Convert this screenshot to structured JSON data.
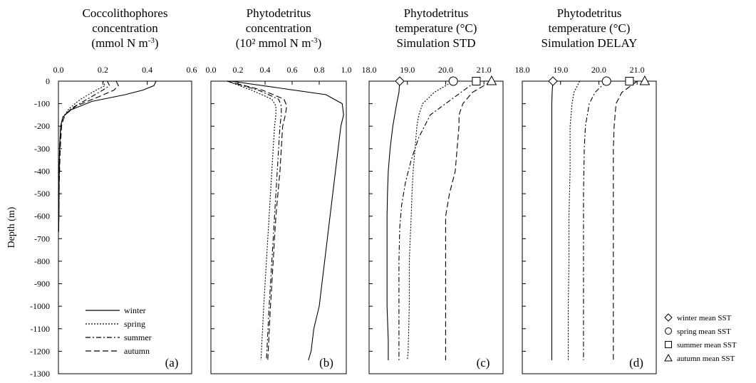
{
  "chart_data": {
    "type": "line",
    "ylabel": "Depth (m)",
    "ylim": [
      -1300,
      0
    ],
    "yticks": [
      "0",
      "-100",
      "-200",
      "-300",
      "-400",
      "-500",
      "-600",
      "-700",
      "-800",
      "-900",
      "-1000",
      "-1100",
      "-1200",
      "-1300"
    ],
    "legend_lines": [
      "winter",
      "spring",
      "summer",
      "autumn"
    ],
    "legend_markers": [
      {
        "label": "winter mean SST",
        "marker": "diamond"
      },
      {
        "label": "spring mean SST",
        "marker": "circle"
      },
      {
        "label": "summer mean SST",
        "marker": "square"
      },
      {
        "label": "autumn mean SST",
        "marker": "triangle"
      }
    ],
    "styles": {
      "winter": "solid",
      "spring": "dotted",
      "summer": "dash-dot",
      "autumn": "dashed"
    },
    "panels": [
      {
        "letter": "(a)",
        "title": [
          "Coccolithophores",
          "concentration",
          "(mmol N m-3)"
        ],
        "xlim": [
          0,
          0.6
        ],
        "xticks": [
          "0.0",
          "0.2",
          "0.4",
          "0.6"
        ],
        "series": [
          {
            "name": "winter",
            "x": [
              0.44,
              0.43,
              0.38,
              0.3,
              0.15,
              0.05,
              0.02,
              0.01,
              0.005,
              0.003,
              0.002,
              0.001
            ],
            "y": [
              0,
              -20,
              -40,
              -60,
              -90,
              -130,
              -160,
              -200,
              -300,
              -450,
              -600,
              -670
            ]
          },
          {
            "name": "spring",
            "x": [
              0.2,
              0.21,
              0.17,
              0.1,
              0.05,
              0.02,
              0.01,
              0.005,
              0.003,
              0.002,
              0.001
            ],
            "y": [
              0,
              -20,
              -40,
              -80,
              -120,
              -160,
              -200,
              -300,
              -450,
              -600,
              -670
            ]
          },
          {
            "name": "summer",
            "x": [
              0.22,
              0.23,
              0.2,
              0.13,
              0.06,
              0.02,
              0.01,
              0.005,
              0.003,
              0.002,
              0.001
            ],
            "y": [
              0,
              -20,
              -40,
              -80,
              -120,
              -160,
              -200,
              -300,
              -450,
              -600,
              -670
            ]
          },
          {
            "name": "autumn",
            "x": [
              0.26,
              0.27,
              0.25,
              0.18,
              0.08,
              0.03,
              0.015,
              0.008,
              0.004,
              0.002,
              0.001
            ],
            "y": [
              0,
              -20,
              -40,
              -70,
              -110,
              -150,
              -190,
              -300,
              -450,
              -600,
              -670
            ]
          }
        ]
      },
      {
        "letter": "(b)",
        "title": [
          "Phytodetritus",
          "concentration",
          "(10² mmol N m-3)"
        ],
        "xlim": [
          0,
          1
        ],
        "xticks": [
          "0.0",
          "0.2",
          "0.4",
          "0.6",
          "0.8",
          "1.0"
        ],
        "series": [
          {
            "name": "winter",
            "x": [
              0.15,
              0.5,
              0.85,
              0.97,
              0.98,
              0.96,
              0.92,
              0.88,
              0.84,
              0.8,
              0.76,
              0.74,
              0.72
            ],
            "y": [
              0,
              -30,
              -60,
              -100,
              -150,
              -200,
              -400,
              -600,
              -800,
              -1000,
              -1100,
              -1200,
              -1240
            ]
          },
          {
            "name": "spring",
            "x": [
              0.12,
              0.3,
              0.45,
              0.48,
              0.48,
              0.47,
              0.45,
              0.43,
              0.41,
              0.39,
              0.37
            ],
            "y": [
              0,
              -40,
              -80,
              -110,
              -150,
              -200,
              -400,
              -600,
              -800,
              -1000,
              -1240
            ]
          },
          {
            "name": "summer",
            "x": [
              0.12,
              0.35,
              0.5,
              0.52,
              0.52,
              0.51,
              0.49,
              0.47,
              0.45,
              0.43,
              0.41
            ],
            "y": [
              0,
              -40,
              -80,
              -110,
              -150,
              -200,
              -400,
              -600,
              -800,
              -1000,
              -1240
            ]
          },
          {
            "name": "autumn",
            "x": [
              0.12,
              0.38,
              0.54,
              0.56,
              0.55,
              0.53,
              0.51,
              0.48,
              0.46,
              0.44,
              0.42
            ],
            "y": [
              0,
              -40,
              -80,
              -110,
              -150,
              -200,
              -400,
              -600,
              -800,
              -1000,
              -1240
            ]
          }
        ]
      },
      {
        "letter": "(c)",
        "title": [
          "Phytodetritus",
          "temperature (°C)",
          "Simulation STD"
        ],
        "xlim": [
          18,
          21.5
        ],
        "xticks": [
          "18.0",
          "19.0",
          "20.0",
          "21.0"
        ],
        "sst": {
          "winter": 18.8,
          "spring": 20.2,
          "summer": 20.8,
          "autumn": 21.2
        },
        "series": [
          {
            "name": "winter",
            "x": [
              18.8,
              18.78,
              18.72,
              18.62,
              18.55,
              18.5,
              18.48,
              18.47,
              18.47,
              18.47,
              18.5,
              18.5,
              18.5
            ],
            "y": [
              0,
              -50,
              -100,
              -200,
              -300,
              -400,
              -500,
              -600,
              -800,
              -1000,
              -1150,
              -1200,
              -1240
            ]
          },
          {
            "name": "spring",
            "x": [
              20.2,
              19.7,
              19.4,
              19.3,
              19.25,
              19.2,
              19.15,
              19.12,
              19.1,
              19.05,
              19.05,
              19.02,
              19.0
            ],
            "y": [
              0,
              -50,
              -100,
              -150,
              -200,
              -300,
              -400,
              -500,
              -600,
              -800,
              -1000,
              -1200,
              -1240
            ]
          },
          {
            "name": "summer",
            "x": [
              20.8,
              20.4,
              20.0,
              19.6,
              19.3,
              19.1,
              18.95,
              18.85,
              18.8,
              18.78,
              18.78,
              18.78
            ],
            "y": [
              0,
              -50,
              -100,
              -150,
              -250,
              -350,
              -450,
              -550,
              -650,
              -800,
              -1000,
              -1240
            ]
          },
          {
            "name": "autumn",
            "x": [
              21.2,
              20.7,
              20.45,
              20.35,
              20.35,
              20.3,
              20.25,
              20.1,
              20.0,
              20.0,
              20.0,
              20.0
            ],
            "y": [
              0,
              -50,
              -100,
              -150,
              -200,
              -300,
              -400,
              -500,
              -600,
              -800,
              -1000,
              -1240
            ]
          }
        ]
      },
      {
        "letter": "(d)",
        "title": [
          "Phytodetritus",
          "temperature (°C)",
          "Simulation DELAY"
        ],
        "xlim": [
          18,
          21.5
        ],
        "xticks": [
          "18.0",
          "19.0",
          "20.0",
          "21.0"
        ],
        "sst": {
          "winter": 18.8,
          "spring": 20.2,
          "summer": 20.8,
          "autumn": 21.2
        },
        "series": [
          {
            "name": "winter",
            "x": [
              18.8,
              18.78,
              18.77,
              18.77,
              18.77,
              18.77,
              18.77,
              18.77,
              18.77
            ],
            "y": [
              0,
              -50,
              -100,
              -200,
              -400,
              -600,
              -800,
              -1000,
              -1240
            ]
          },
          {
            "name": "spring",
            "x": [
              19.5,
              19.35,
              19.3,
              19.25,
              19.25,
              19.22,
              19.22,
              19.2,
              19.2
            ],
            "y": [
              0,
              -50,
              -100,
              -200,
              -400,
              -600,
              -800,
              -1000,
              -1240
            ]
          },
          {
            "name": "summer",
            "x": [
              20.2,
              19.9,
              19.75,
              19.65,
              19.62,
              19.6,
              19.6,
              19.6,
              19.6
            ],
            "y": [
              0,
              -50,
              -100,
              -200,
              -300,
              -500,
              -700,
              -1000,
              -1240
            ]
          },
          {
            "name": "autumn",
            "x": [
              21.0,
              20.6,
              20.45,
              20.4,
              20.38,
              20.38,
              20.38,
              20.38,
              20.38
            ],
            "y": [
              0,
              -50,
              -100,
              -200,
              -300,
              -500,
              -700,
              -1000,
              -1240
            ]
          }
        ]
      }
    ]
  }
}
